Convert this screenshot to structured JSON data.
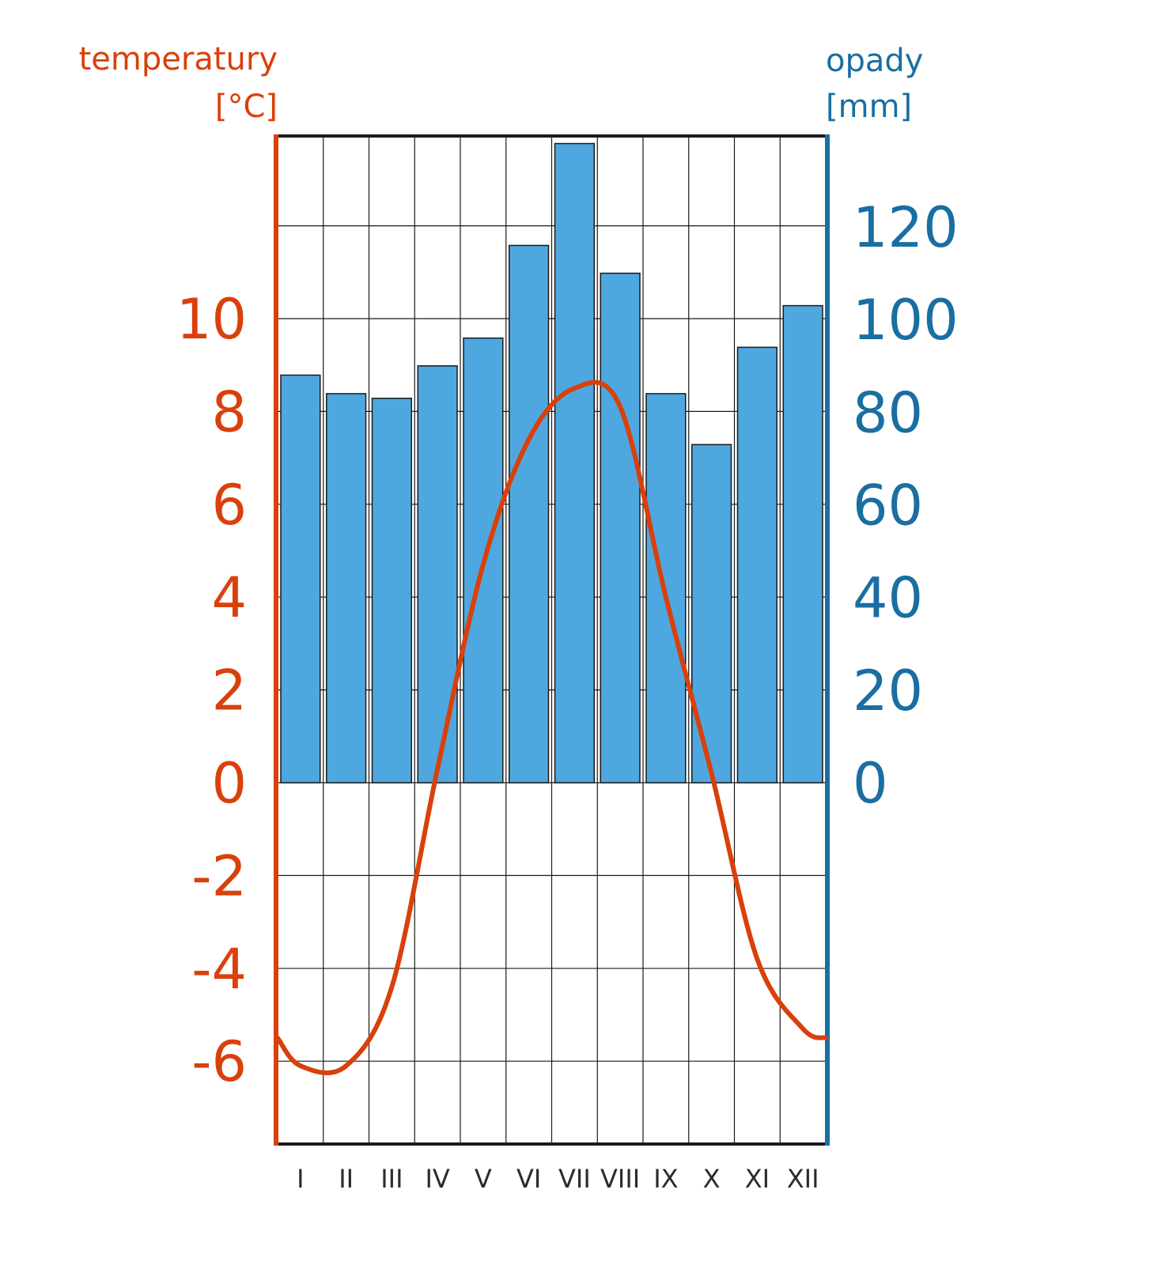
{
  "chart_data": {
    "type": "bar+line",
    "categories": [
      "I",
      "II",
      "III",
      "IV",
      "V",
      "VI",
      "VII",
      "VIII",
      "IX",
      "X",
      "XI",
      "XII"
    ],
    "precipitation": {
      "axis_title": [
        "opady",
        "[mm]"
      ],
      "values": [
        88,
        84,
        83,
        90,
        96,
        116,
        138,
        110,
        84,
        73,
        94,
        103
      ],
      "ticks": [
        "0",
        "20",
        "40",
        "60",
        "80",
        "100",
        "120"
      ],
      "ylim": [
        0,
        140
      ],
      "color": "#4fa7df",
      "axis_color": "#1a6ea1"
    },
    "temperature": {
      "axis_title": [
        "temperatury",
        "[°C]"
      ],
      "values": [
        -6.1,
        -6.1,
        -4.4,
        0.3,
        4.7,
        7.4,
        8.5,
        8.1,
        4.0,
        0.2,
        -3.8,
        -5.3
      ],
      "edge_values": [
        -5.5,
        -5.5
      ],
      "ticks": [
        "-6",
        "-4",
        "-2",
        "0",
        "2",
        "4",
        "6",
        "8",
        "10"
      ],
      "ylim": [
        -7.8,
        14
      ],
      "color": "#d9400b"
    },
    "grid": true
  }
}
